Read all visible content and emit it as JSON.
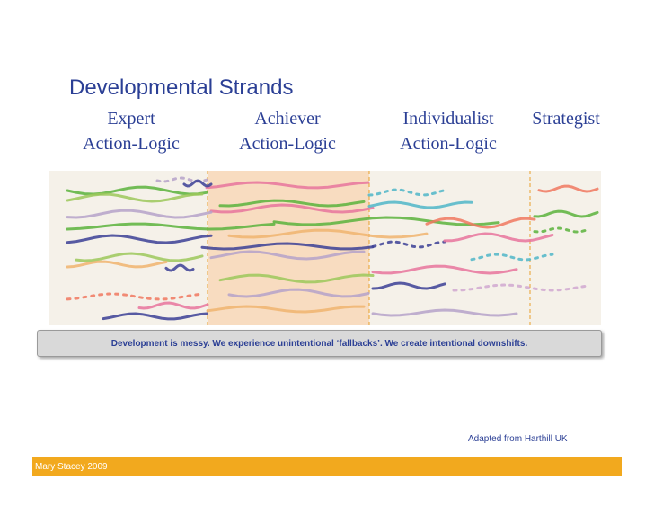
{
  "title": "Developmental Strands",
  "stages": [
    {
      "line1": "Expert",
      "line2": "Action-Logic"
    },
    {
      "line1": "Achiever",
      "line2": "Action-Logic"
    },
    {
      "line1": "Individualist",
      "line2": "Action-Logic"
    },
    {
      "line1": "Strategist",
      "line2": ""
    }
  ],
  "caption": "Development is messy. We experience unintentional ‘fallbacks’. We create intentional downshifts.",
  "credit": "Adapted from Harthill UK",
  "footer": "Mary Stacey 2009",
  "colors": {
    "title": "#2b3f95",
    "highlight": "#f8dcc0",
    "divider": "#e9a02a",
    "footer_bar": "#f2a91e",
    "strands": [
      "#5ab33c",
      "#e8749c",
      "#3b3f95",
      "#b5a2c9",
      "#f0785f",
      "#9cc85a",
      "#4fb6c8",
      "#f0b46e",
      "#d0a8d0"
    ]
  }
}
